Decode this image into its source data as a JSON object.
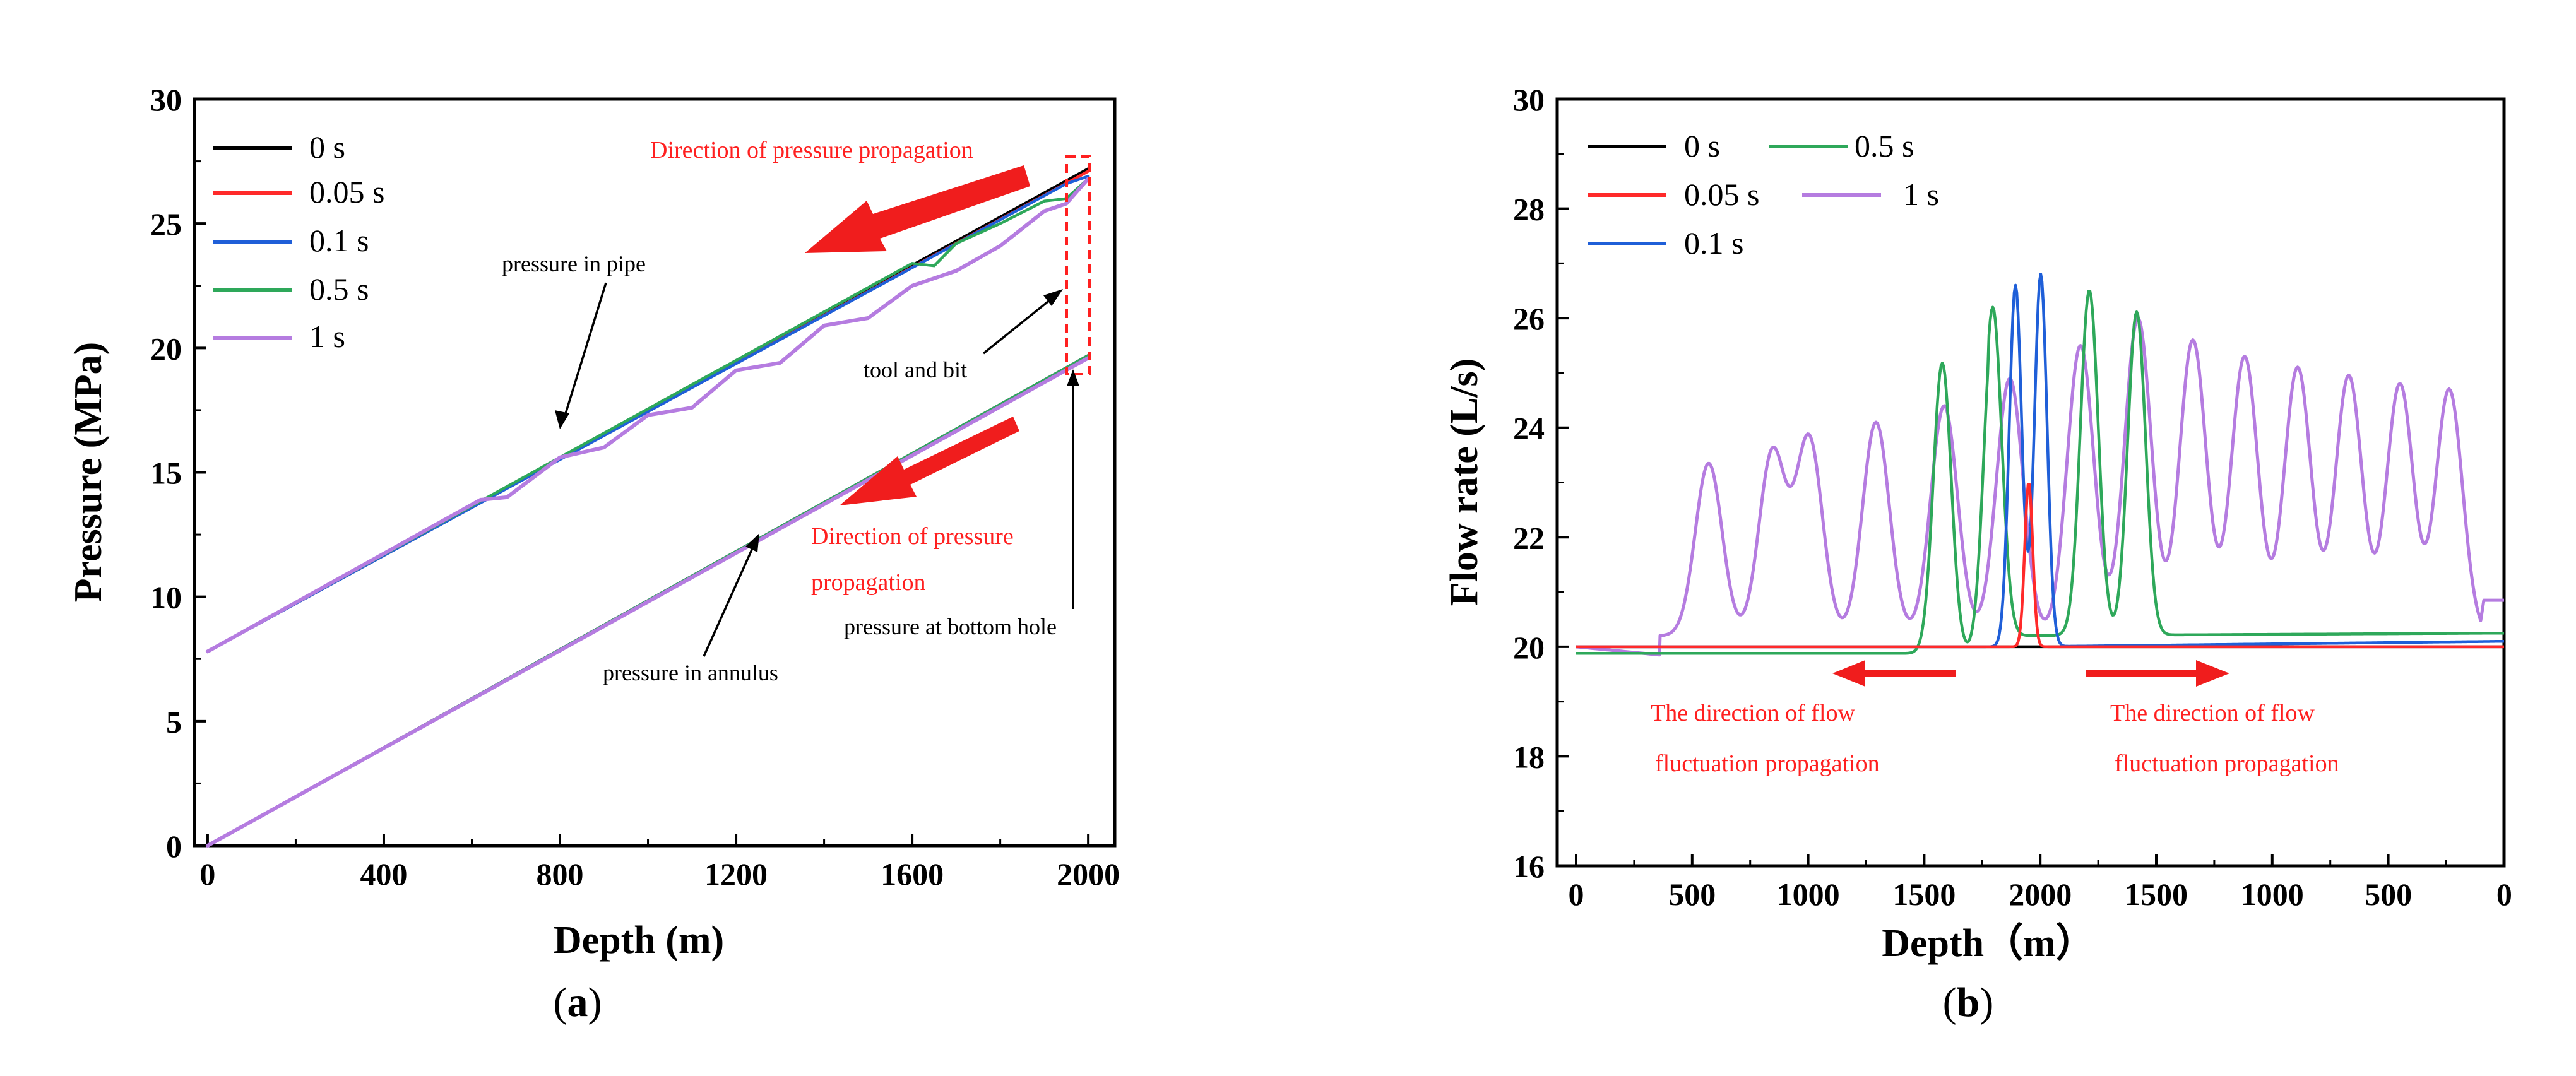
{
  "colors": {
    "s0": "#000000",
    "s005": "#ff2a2a",
    "s01": "#1f5fd8",
    "s05": "#2ea85a",
    "s1": "#b57ce0",
    "annotation_red": "#ff2020",
    "arrow_red": "#f01d1d"
  },
  "chart_data": [
    {
      "type": "line",
      "panel_label": "a",
      "xlabel": "Depth (m)",
      "ylabel": "Pressure (MPa)",
      "xlim": [
        -30,
        2060
      ],
      "ylim": [
        0,
        30
      ],
      "xticks": [
        "0",
        "400",
        "800",
        "1200",
        "1600",
        "2000"
      ],
      "yticks": [
        "0",
        "5",
        "10",
        "15",
        "20",
        "25",
        "30"
      ],
      "grid": false,
      "legend": [
        "0 s",
        "0.05 s",
        "0.1 s",
        "0.5 s",
        "1 s"
      ],
      "legend_position": "top-left",
      "series": [
        {
          "name": "0 s",
          "curves": [
            {
              "x": [
                0,
                2000
              ],
              "y": [
                7.8,
                27.2
              ]
            },
            {
              "x": [
                0,
                2000
              ],
              "y": [
                0,
                19.7
              ]
            }
          ]
        },
        {
          "name": "0.05 s",
          "curves": [
            {
              "x": [
                0,
                2000
              ],
              "y": [
                7.8,
                27.1
              ]
            },
            {
              "x": [
                0,
                2000
              ],
              "y": [
                0,
                19.7
              ]
            }
          ]
        },
        {
          "name": "0.1 s",
          "curves": [
            {
              "x": [
                0,
                1950,
                2000
              ],
              "y": [
                7.8,
                26.6,
                26.9
              ]
            },
            {
              "x": [
                0,
                2000
              ],
              "y": [
                0,
                19.7
              ]
            }
          ]
        },
        {
          "name": "0.5 s",
          "curves": [
            {
              "x": [
                0,
                1600,
                1650,
                1700,
                1800,
                1900,
                1950,
                2000
              ],
              "y": [
                7.8,
                23.4,
                23.3,
                24.2,
                25.0,
                25.9,
                26.0,
                26.8
              ]
            },
            {
              "x": [
                0,
                2000
              ],
              "y": [
                0,
                19.7
              ]
            }
          ]
        },
        {
          "name": "1 s",
          "curves": [
            {
              "x": [
                0,
                620,
                680,
                800,
                900,
                1000,
                1100,
                1200,
                1300,
                1400,
                1500,
                1600,
                1700,
                1800,
                1900,
                1950,
                2000
              ],
              "y": [
                7.8,
                13.9,
                14.0,
                15.6,
                16.0,
                17.3,
                17.6,
                19.1,
                19.4,
                20.9,
                21.2,
                22.5,
                23.1,
                24.1,
                25.5,
                25.8,
                26.8
              ]
            },
            {
              "x": [
                0,
                2000
              ],
              "y": [
                0,
                19.6
              ]
            }
          ]
        }
      ],
      "annotations": {
        "direction_top": "Direction of pressure propagation",
        "pressure_in_pipe": "pressure in pipe",
        "tool_and_bit": "tool and bit",
        "direction_mid_1": "Direction of pressure",
        "direction_mid_2": "propagation",
        "pressure_bottom_hole": "pressure at bottom hole",
        "pressure_in_annulus": "pressure in annulus"
      }
    },
    {
      "type": "line",
      "panel_label": "b",
      "xlabel": "Depth（m）",
      "ylabel": "Flow rate (L/s)",
      "ylim": [
        16,
        30
      ],
      "xticks": [
        "0",
        "500",
        "1000",
        "1500",
        "2000",
        "1500",
        "1000",
        "500",
        "0"
      ],
      "yticks": [
        "16",
        "18",
        "20",
        "22",
        "24",
        "26",
        "28",
        "30"
      ],
      "grid": false,
      "legend": [
        "0 s",
        "0.5 s",
        "0.05 s",
        "1 s",
        "0.1 s"
      ],
      "legend_position": "top-left",
      "series": [
        {
          "name": "0 s",
          "baseline": 20.0,
          "end_value": 20.0
        },
        {
          "name": "0.05 s",
          "baseline": 20.0,
          "peak": 23.0,
          "peak_x": "2000"
        },
        {
          "name": "0.1 s",
          "baseline": 20.0,
          "peaks": [
            26.6,
            26.8
          ],
          "end_value": 20.1
        },
        {
          "name": "0.5 s",
          "baseline_left": 19.85,
          "baseline_right": 20.25,
          "peaks": [
            25.3,
            26.0,
            26.3,
            25.9
          ],
          "window": "1700 to 1700 (return)"
        },
        {
          "name": "1 s",
          "baseline_left": 19.85,
          "baseline_right": 20.85,
          "peaks": [
            23.35,
            23.55,
            23.8,
            24.1,
            24.4,
            24.9,
            25.5,
            26.0,
            25.6,
            25.3,
            25.1,
            24.95,
            24.8,
            24.7
          ]
        }
      ],
      "annotations": {
        "left_line1": "The direction of flow",
        "left_line2": "fluctuation propagation",
        "right_line1": "The direction of flow",
        "right_line2": "fluctuation propagation"
      }
    }
  ]
}
